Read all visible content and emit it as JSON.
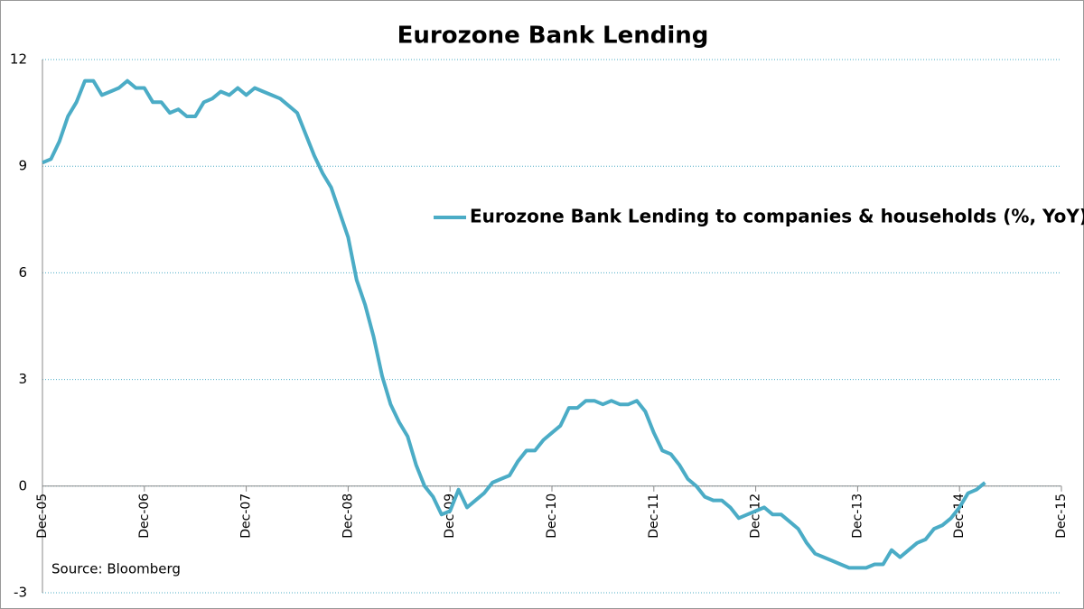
{
  "chart_data": {
    "type": "line",
    "title": "Eurozone Bank Lending",
    "annotation": "Source: Bloomberg",
    "categories": [
      "Dec-05",
      null,
      null,
      null,
      null,
      null,
      null,
      null,
      null,
      null,
      null,
      null,
      "Dec-06",
      null,
      null,
      null,
      null,
      null,
      null,
      null,
      null,
      null,
      null,
      null,
      "Dec-07",
      null,
      null,
      null,
      null,
      null,
      null,
      null,
      null,
      null,
      null,
      null,
      "Dec-08",
      null,
      null,
      null,
      null,
      null,
      null,
      null,
      null,
      null,
      null,
      null,
      "Dec-09",
      null,
      null,
      null,
      null,
      null,
      null,
      null,
      null,
      null,
      null,
      null,
      "Dec-10",
      null,
      null,
      null,
      null,
      null,
      null,
      null,
      null,
      null,
      null,
      null,
      "Dec-11",
      null,
      null,
      null,
      null,
      null,
      null,
      null,
      null,
      null,
      null,
      null,
      "Dec-12",
      null,
      null,
      null,
      null,
      null,
      null,
      null,
      null,
      null,
      null,
      null,
      "Dec-13",
      null,
      null,
      null,
      null,
      null,
      null,
      null,
      null,
      null,
      null,
      null,
      "Dec-14",
      null,
      null,
      null,
      null,
      null,
      null,
      null,
      null,
      null,
      null,
      null,
      "Dec-15"
    ],
    "series": [
      {
        "name": "Eurozone Bank Lending to companies & households (%, YoY)",
        "color": "#4bacc6",
        "values": [
          9.1,
          9.2,
          9.7,
          10.4,
          10.8,
          11.4,
          11.4,
          11.0,
          11.1,
          11.2,
          11.4,
          11.2,
          11.2,
          10.8,
          10.8,
          10.5,
          10.6,
          10.4,
          10.4,
          10.8,
          10.9,
          11.1,
          11.0,
          11.2,
          11.0,
          11.2,
          11.1,
          11.0,
          10.9,
          10.7,
          10.5,
          9.9,
          9.3,
          8.8,
          8.4,
          7.7,
          7.0,
          5.8,
          5.1,
          4.2,
          3.1,
          2.3,
          1.8,
          1.4,
          0.6,
          0.0,
          -0.3,
          -0.8,
          -0.7,
          -0.1,
          -0.6,
          -0.4,
          -0.2,
          0.1,
          0.2,
          0.3,
          0.7,
          1.0,
          1.0,
          1.3,
          1.5,
          1.7,
          2.2,
          2.2,
          2.4,
          2.4,
          2.3,
          2.4,
          2.3,
          2.3,
          2.4,
          2.1,
          1.5,
          1.0,
          0.9,
          0.6,
          0.2,
          0.0,
          -0.3,
          -0.4,
          -0.4,
          -0.6,
          -0.9,
          -0.8,
          -0.7,
          -0.6,
          -0.8,
          -0.8,
          -1.0,
          -1.2,
          -1.6,
          -1.9,
          -2.0,
          -2.1,
          -2.2,
          -2.3,
          -2.3,
          -2.3,
          -2.2,
          -2.2,
          -1.8,
          -2.0,
          -1.8,
          -1.6,
          -1.5,
          -1.2,
          -1.1,
          -0.9,
          -0.6,
          -0.2,
          -0.1,
          0.1,
          null,
          null,
          null,
          null,
          null,
          null,
          null,
          null,
          null
        ]
      }
    ],
    "ylim": [
      -3,
      12
    ],
    "yticks": [
      -3,
      0,
      3,
      6,
      9,
      12
    ],
    "grid": true
  }
}
